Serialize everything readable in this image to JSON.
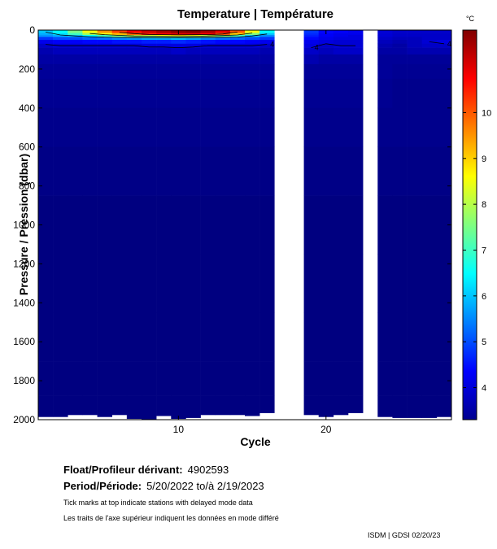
{
  "chart_data": {
    "type": "heatmap",
    "title": "Temperature | Température",
    "xlabel": "Cycle",
    "ylabel": "Pressure / Pression (dbar)",
    "colorbar_unit": "°C",
    "x_range": [
      0.5,
      28.5
    ],
    "y_range": [
      0,
      2000
    ],
    "x_ticks": [
      10,
      20
    ],
    "y_ticks": [
      0,
      200,
      400,
      600,
      800,
      1000,
      1200,
      1400,
      1600,
      1800,
      2000
    ],
    "color_range": [
      3.3,
      11.8
    ],
    "colorbar_ticks": [
      4,
      5,
      6,
      7,
      8,
      9,
      10
    ],
    "missing_cycles": [
      17,
      18,
      23
    ],
    "cycles": [
      1,
      2,
      3,
      4,
      5,
      6,
      7,
      8,
      9,
      10,
      11,
      12,
      13,
      14,
      15,
      16,
      19,
      20,
      21,
      22,
      24,
      25,
      26,
      27,
      28
    ],
    "depth_levels": [
      0,
      10,
      20,
      30,
      40,
      60,
      80,
      100,
      150,
      200,
      300,
      500,
      700,
      1000,
      1300,
      1600,
      1800,
      1950
    ],
    "profile_max_depth": [
      1985,
      1985,
      1975,
      1975,
      1985,
      1975,
      1995,
      2000,
      1980,
      1995,
      1990,
      1975,
      1975,
      1975,
      1980,
      1965,
      1975,
      1985,
      1975,
      1965,
      1985,
      1990,
      1990,
      1990,
      1985
    ],
    "values": [
      [
        6.0,
        6.0,
        5.8,
        5.6,
        4.8,
        4.2,
        3.9,
        3.7,
        3.6,
        3.5,
        3.45,
        3.4,
        3.35,
        3.3,
        3.3,
        3.3,
        3.3,
        3.3
      ],
      [
        6.5,
        6.5,
        6.2,
        5.8,
        5.0,
        4.3,
        4.0,
        3.8,
        3.6,
        3.5,
        3.45,
        3.4,
        3.35,
        3.3,
        3.3,
        3.3,
        3.3,
        3.3
      ],
      [
        7.5,
        7.5,
        7.0,
        6.0,
        5.0,
        4.3,
        4.0,
        3.8,
        3.6,
        3.5,
        3.45,
        3.4,
        3.35,
        3.3,
        3.3,
        3.3,
        3.3,
        3.3
      ],
      [
        8.5,
        8.5,
        7.8,
        6.5,
        5.2,
        4.4,
        4.0,
        3.8,
        3.6,
        3.5,
        3.45,
        3.4,
        3.35,
        3.3,
        3.3,
        3.3,
        3.3,
        3.3
      ],
      [
        9.5,
        9.5,
        8.5,
        7.0,
        5.3,
        4.4,
        4.0,
        3.8,
        3.6,
        3.5,
        3.45,
        3.4,
        3.35,
        3.3,
        3.3,
        3.3,
        3.3,
        3.3
      ],
      [
        10.2,
        10.2,
        9.2,
        7.5,
        5.5,
        4.5,
        4.0,
        3.8,
        3.6,
        3.5,
        3.45,
        3.4,
        3.35,
        3.3,
        3.3,
        3.3,
        3.3,
        3.3
      ],
      [
        10.8,
        10.8,
        9.8,
        8.0,
        5.6,
        4.5,
        4.0,
        3.8,
        3.6,
        3.5,
        3.45,
        3.4,
        3.35,
        3.3,
        3.3,
        3.3,
        3.3,
        3.3
      ],
      [
        11.2,
        11.2,
        10.5,
        8.2,
        5.8,
        4.6,
        4.1,
        3.8,
        3.6,
        3.5,
        3.45,
        3.4,
        3.35,
        3.3,
        3.3,
        3.3,
        3.3,
        3.3
      ],
      [
        11.5,
        11.5,
        10.8,
        8.5,
        5.8,
        4.6,
        4.1,
        3.8,
        3.6,
        3.5,
        3.45,
        3.4,
        3.35,
        3.3,
        3.3,
        3.3,
        3.3,
        3.3
      ],
      [
        11.7,
        11.7,
        11.0,
        8.8,
        6.0,
        4.7,
        4.1,
        3.9,
        3.6,
        3.5,
        3.45,
        3.4,
        3.35,
        3.3,
        3.3,
        3.3,
        3.3,
        3.3
      ],
      [
        11.8,
        11.8,
        11.0,
        8.5,
        5.8,
        4.6,
        4.1,
        3.8,
        3.6,
        3.5,
        3.45,
        3.4,
        3.35,
        3.3,
        3.3,
        3.3,
        3.3,
        3.3
      ],
      [
        11.5,
        11.5,
        10.8,
        8.0,
        5.5,
        4.5,
        4.0,
        3.8,
        3.6,
        3.5,
        3.45,
        3.4,
        3.35,
        3.3,
        3.3,
        3.3,
        3.3,
        3.3
      ],
      [
        11.0,
        11.0,
        10.0,
        7.5,
        5.3,
        4.4,
        4.0,
        3.8,
        3.6,
        3.5,
        3.45,
        3.4,
        3.35,
        3.3,
        3.3,
        3.3,
        3.3,
        3.3
      ],
      [
        10.0,
        10.0,
        9.0,
        7.0,
        5.2,
        4.4,
        4.0,
        3.8,
        3.6,
        3.5,
        3.45,
        3.4,
        3.35,
        3.3,
        3.3,
        3.3,
        3.3,
        3.3
      ],
      [
        8.5,
        8.5,
        7.5,
        6.0,
        5.0,
        4.3,
        4.0,
        3.8,
        3.6,
        3.5,
        3.45,
        3.4,
        3.35,
        3.3,
        3.3,
        3.3,
        3.3,
        3.3
      ],
      [
        6.5,
        6.5,
        6.0,
        5.5,
        4.8,
        4.2,
        3.9,
        3.7,
        3.6,
        3.5,
        3.45,
        3.4,
        3.35,
        3.3,
        3.3,
        3.3,
        3.3,
        3.3
      ],
      [
        4.8,
        4.8,
        4.7,
        4.6,
        4.4,
        4.2,
        4.1,
        3.9,
        3.7,
        3.5,
        3.45,
        3.4,
        3.35,
        3.3,
        3.3,
        3.3,
        3.3,
        3.3
      ],
      [
        4.4,
        4.4,
        4.3,
        4.3,
        4.2,
        4.1,
        3.9,
        3.8,
        3.6,
        3.5,
        3.45,
        3.4,
        3.35,
        3.3,
        3.3,
        3.3,
        3.3,
        3.3
      ],
      [
        4.3,
        4.3,
        4.2,
        4.2,
        4.1,
        4.0,
        4.0,
        3.9,
        3.6,
        3.5,
        3.45,
        3.4,
        3.35,
        3.3,
        3.3,
        3.3,
        3.3,
        3.3
      ],
      [
        4.2,
        4.2,
        4.2,
        4.1,
        4.1,
        4.0,
        4.0,
        3.9,
        3.6,
        3.5,
        3.45,
        3.4,
        3.35,
        3.3,
        3.3,
        3.3,
        3.3,
        3.3
      ],
      [
        4.0,
        4.0,
        4.0,
        4.0,
        3.9,
        3.8,
        3.7,
        3.6,
        3.5,
        3.5,
        3.45,
        3.4,
        3.35,
        3.3,
        3.3,
        3.3,
        3.3,
        3.3
      ],
      [
        3.9,
        3.9,
        3.9,
        3.9,
        3.8,
        3.7,
        3.6,
        3.6,
        3.5,
        3.45,
        3.4,
        3.4,
        3.35,
        3.3,
        3.3,
        3.3,
        3.3,
        3.3
      ],
      [
        3.9,
        3.9,
        3.9,
        3.9,
        3.8,
        3.8,
        3.8,
        3.7,
        3.5,
        3.45,
        3.4,
        3.4,
        3.35,
        3.3,
        3.3,
        3.3,
        3.3,
        3.3
      ],
      [
        3.9,
        3.9,
        3.9,
        3.9,
        3.9,
        4.0,
        3.9,
        3.7,
        3.5,
        3.45,
        3.4,
        3.4,
        3.35,
        3.3,
        3.3,
        3.3,
        3.3,
        3.3
      ],
      [
        3.9,
        3.9,
        3.9,
        3.9,
        3.9,
        4.1,
        3.9,
        3.7,
        3.5,
        3.45,
        3.4,
        3.4,
        3.35,
        3.3,
        3.3,
        3.3,
        3.3,
        3.3
      ]
    ],
    "contour_labels": [
      "4",
      "4",
      "4"
    ]
  },
  "info": {
    "float_label": "Float/Profileur dérivant:",
    "float_value": "4902593",
    "period_label": "Period/Période:",
    "period_value": "5/20/2022  to/à  2/19/2023",
    "note_en": "Tick marks at top indicate stations with delayed mode data",
    "note_fr": "Les traits de l'axe supérieur indiquent les données en mode différé",
    "credit": "ISDM | GDSI  02/20/23"
  }
}
